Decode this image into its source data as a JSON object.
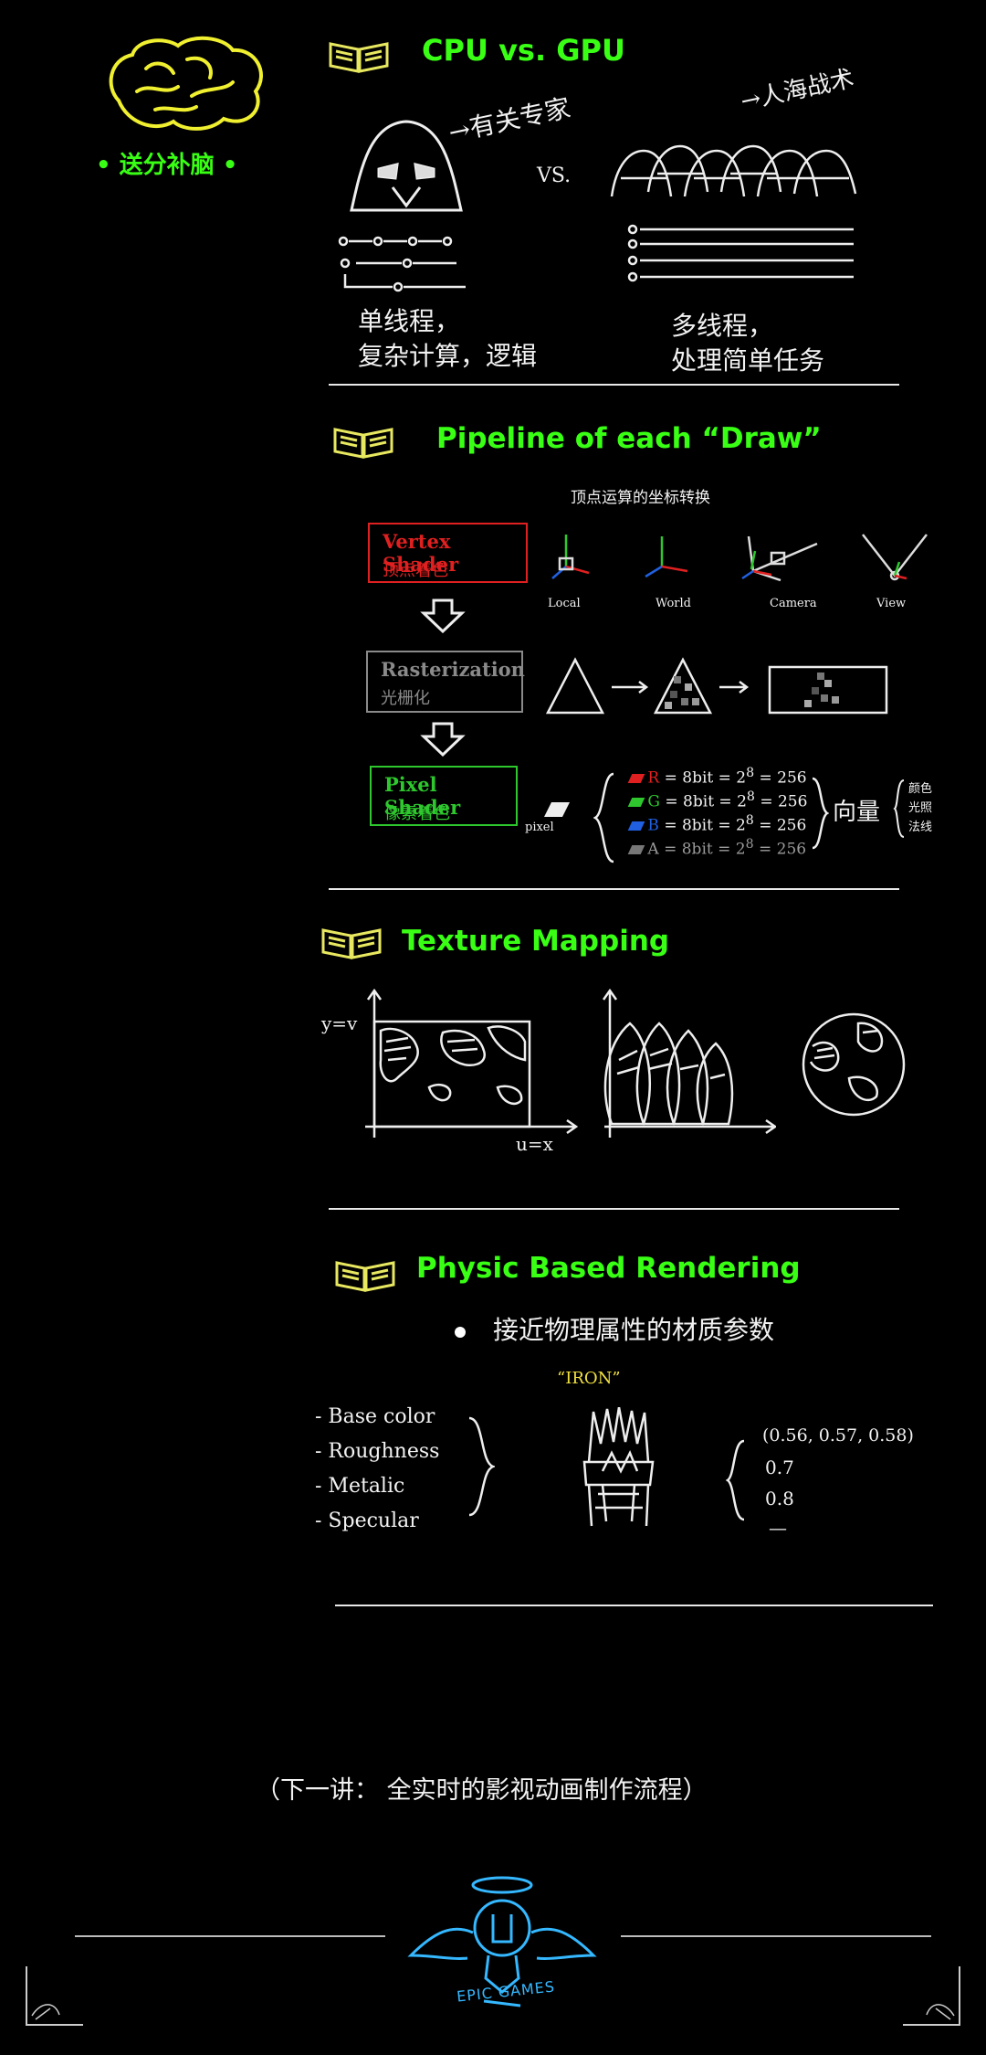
{
  "header": {
    "badge_label": "• 送分补脑 •",
    "brain_icon": "brain-icon"
  },
  "section1": {
    "title": "CPU vs. GPU",
    "left_label": "→有关专家",
    "vs_label": "VS.",
    "right_label": "→人海战术",
    "left_caption_line1": "单线程，",
    "left_caption_line2": "复杂计算，逻辑",
    "right_caption_line1": "多线程，",
    "right_caption_line2": "处理简单任务"
  },
  "section2": {
    "title": "Pipeline of each “Draw”",
    "vertex_note": "顶点运算的坐标转换",
    "vertex_box": {
      "en": "Vertex Shader",
      "zh": "顶点着色",
      "color": "#e02020"
    },
    "raster_box": {
      "en": "Rasterization",
      "zh": "光栅化",
      "color": "#8a8a8a"
    },
    "pixel_box": {
      "en": "Pixel Shader",
      "zh": "像素着色",
      "color": "#2ec82e"
    },
    "spaces": [
      "Local",
      "World",
      "Camera",
      "View"
    ],
    "pixel_label": "pixel",
    "channels": [
      {
        "name": "R",
        "formula": "= 8bit = 2",
        "exp": "8",
        "result": "= 256",
        "color": "#e02020"
      },
      {
        "name": "G",
        "formula": "= 8bit = 2",
        "exp": "8",
        "result": "= 256",
        "color": "#2ec82e"
      },
      {
        "name": "B",
        "formula": "= 8bit = 2",
        "exp": "8",
        "result": "= 256",
        "color": "#2060e0"
      },
      {
        "name": "A",
        "formula": "= 8bit = 2",
        "exp": "8",
        "result": "= 256",
        "color": "#777777"
      }
    ],
    "vector_label": "向量",
    "vector_items": [
      "颜色",
      "光照",
      "法线"
    ]
  },
  "section3": {
    "title": "Texture Mapping",
    "y_label": "y=v",
    "x_label": "u=x"
  },
  "section4": {
    "title": "Physic Based Rendering",
    "bullet": "接近物理属性的材质参数",
    "material_name": "“IRON”",
    "params": [
      "- Base color",
      "- Roughness",
      "- Metalic",
      "- Specular"
    ],
    "values": [
      "(0.56, 0.57, 0.58)",
      "0.7",
      "0.8",
      "—"
    ]
  },
  "footer": {
    "next_lecture": "（下一讲：  全实时的影视动画制作流程）",
    "logo_text": "EPIC GAMES",
    "logo_icon": "unreal-angel-logo-icon"
  }
}
